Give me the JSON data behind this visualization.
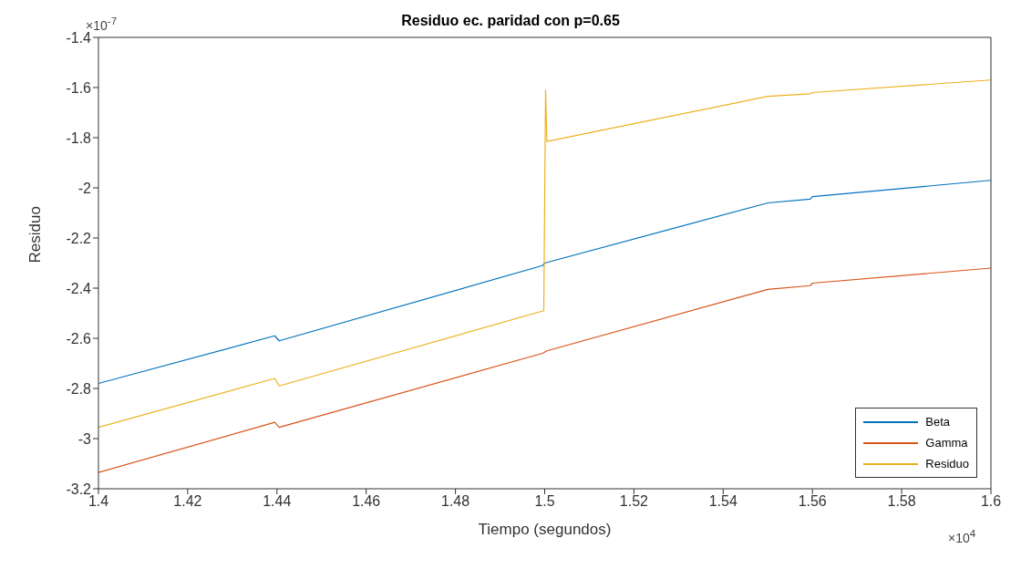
{
  "chart_data": {
    "type": "line",
    "title": "Residuo ec. paridad con p=0.65",
    "xlabel": "Tiempo (segundos)",
    "ylabel": "Residuo",
    "annotations": [
      "×10$^{-7}$",
      "×10$^{4}$"
    ],
    "xlim": [
      1.4,
      1.6
    ],
    "xticks": [
      1.4,
      1.42,
      1.44,
      1.46,
      1.48,
      1.5,
      1.52,
      1.54,
      1.56,
      1.58,
      1.6
    ],
    "ylim": [
      -3.2,
      -1.4
    ],
    "yticks": [
      -3.2,
      -3,
      -2.8,
      -2.6,
      -2.4,
      -2.2,
      -2,
      -1.8,
      -1.6,
      -1.4
    ],
    "grid": false,
    "legend": "bottom right",
    "line_style": "solid",
    "series": [
      {
        "name": "Beta",
        "color": "#0072bd",
        "x": [
          1.4,
          1.4395,
          1.4405,
          1.4995,
          1.5,
          1.55,
          1.5595,
          1.56,
          1.6
        ],
        "values": [
          -2.78,
          -2.59,
          -2.61,
          -2.31,
          -2.3,
          -2.06,
          -2.045,
          -2.035,
          -1.97
        ]
      },
      {
        "name": "Gamma",
        "color": "#d95319",
        "x": [
          1.4,
          1.4395,
          1.4405,
          1.4995,
          1.5005,
          1.55,
          1.5595,
          1.56,
          1.6
        ],
        "values": [
          -3.135,
          -2.935,
          -2.955,
          -2.66,
          -2.65,
          -2.405,
          -2.39,
          -2.38,
          -2.32
        ]
      },
      {
        "name": "Residuo",
        "color": "#edb120",
        "x": [
          1.4,
          1.4395,
          1.4405,
          1.4998,
          1.5002,
          1.5005,
          1.55,
          1.5595,
          1.56,
          1.6
        ],
        "values": [
          -2.955,
          -2.76,
          -2.79,
          -2.49,
          -1.61,
          -1.815,
          -1.635,
          -1.625,
          -1.62,
          -1.57
        ]
      }
    ]
  }
}
